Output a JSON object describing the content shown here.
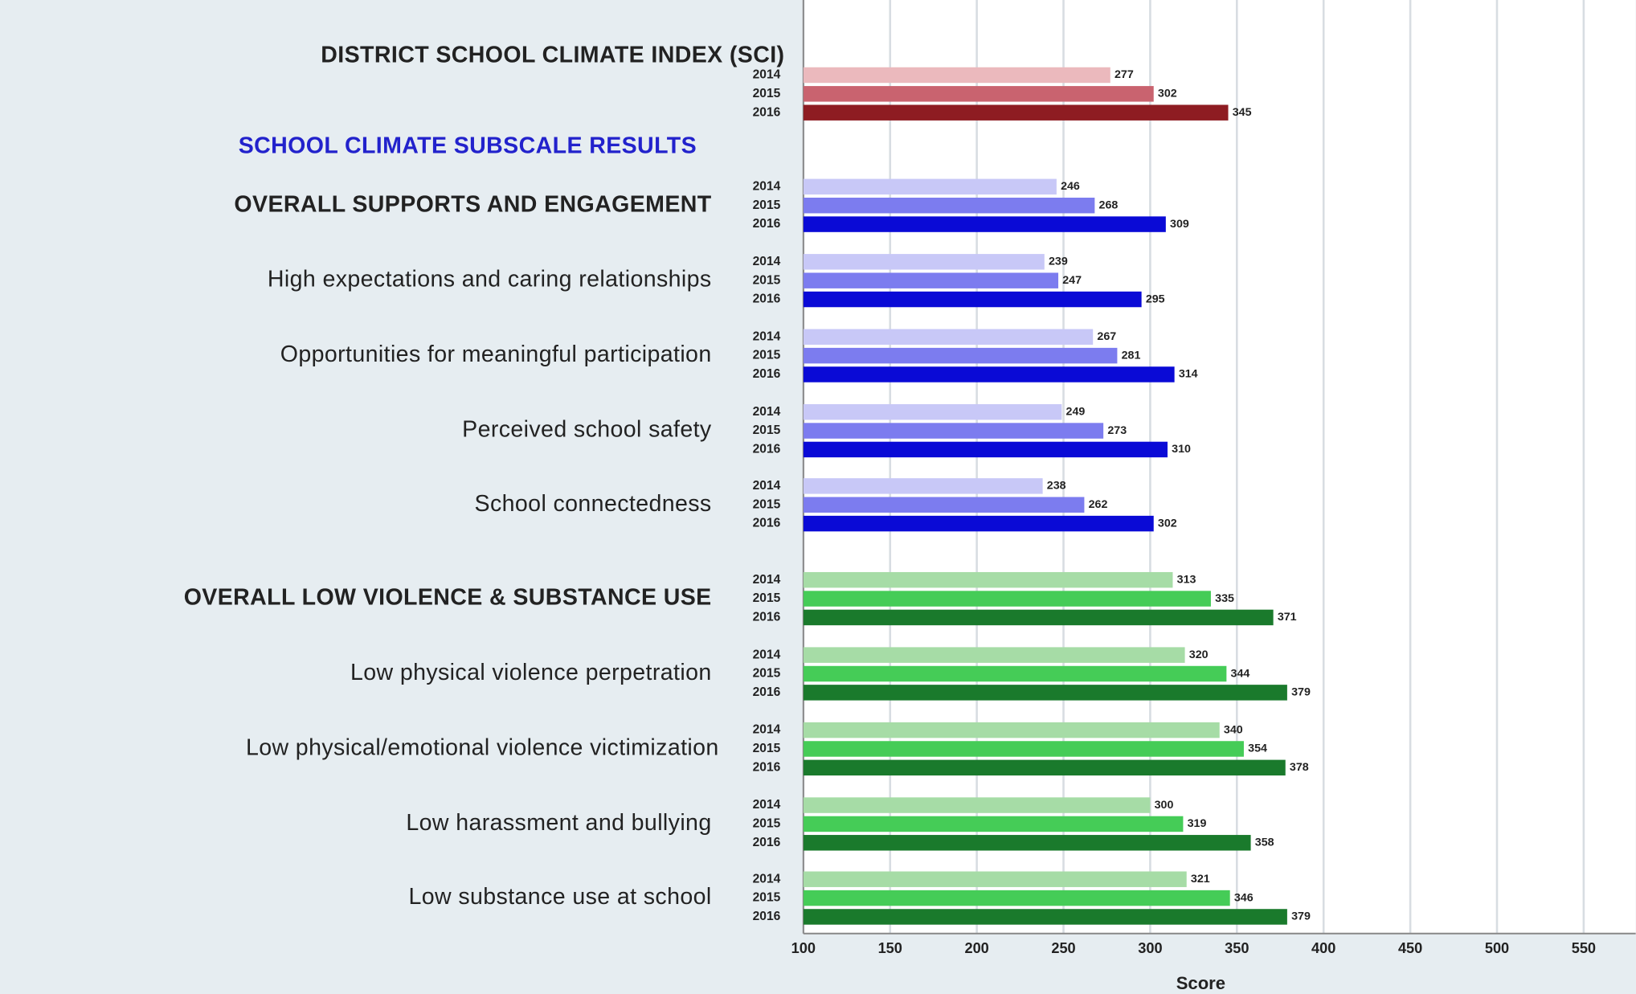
{
  "chart_data": {
    "type": "bar",
    "orientation": "horizontal",
    "xlabel": "Score",
    "xlim": [
      100,
      580
    ],
    "xticks": [
      100,
      150,
      200,
      250,
      300,
      350,
      400,
      450,
      500,
      550
    ],
    "grid": true,
    "years": [
      "2014",
      "2015",
      "2016"
    ],
    "section_label": "SCHOOL CLIMATE SUBSCALE RESULTS",
    "groups": [
      {
        "label": "DISTRICT SCHOOL CLIMATE INDEX (SCI)",
        "bold": true,
        "values": [
          277,
          302,
          345
        ],
        "colors": [
          "#ebb9bd",
          "#c9636f",
          "#8e1c22"
        ]
      },
      {
        "label": "OVERALL SUPPORTS AND ENGAGEMENT",
        "bold": true,
        "values": [
          246,
          268,
          309
        ],
        "colors": [
          "#c8c8f7",
          "#7c7cef",
          "#0a0ad6"
        ]
      },
      {
        "label": "High expectations and caring relationships",
        "bold": false,
        "values": [
          239,
          247,
          295
        ],
        "colors": [
          "#c8c8f7",
          "#7c7cef",
          "#0a0ad6"
        ]
      },
      {
        "label": "Opportunities for meaningful participation",
        "bold": false,
        "values": [
          267,
          281,
          314
        ],
        "colors": [
          "#c8c8f7",
          "#7c7cef",
          "#0a0ad6"
        ]
      },
      {
        "label": "Perceived school safety",
        "bold": false,
        "values": [
          249,
          273,
          310
        ],
        "colors": [
          "#c8c8f7",
          "#7c7cef",
          "#0a0ad6"
        ]
      },
      {
        "label": "School connectedness",
        "bold": false,
        "values": [
          238,
          262,
          302
        ],
        "colors": [
          "#c8c8f7",
          "#7c7cef",
          "#0a0ad6"
        ]
      },
      {
        "label": "OVERALL LOW VIOLENCE & SUBSTANCE USE",
        "bold": true,
        "values": [
          313,
          335,
          371
        ],
        "colors": [
          "#a6dca6",
          "#45cc57",
          "#1a7a2c"
        ]
      },
      {
        "label": "Low physical violence perpetration",
        "bold": false,
        "values": [
          320,
          344,
          379
        ],
        "colors": [
          "#a6dca6",
          "#45cc57",
          "#1a7a2c"
        ]
      },
      {
        "label": "Low physical/emotional violence victimization",
        "bold": false,
        "values": [
          340,
          354,
          378
        ],
        "colors": [
          "#a6dca6",
          "#45cc57",
          "#1a7a2c"
        ]
      },
      {
        "label": "Low harassment and bullying",
        "bold": false,
        "values": [
          300,
          319,
          358
        ],
        "colors": [
          "#a6dca6",
          "#45cc57",
          "#1a7a2c"
        ]
      },
      {
        "label": "Low substance use at school",
        "bold": false,
        "values": [
          321,
          346,
          379
        ],
        "colors": [
          "#a6dca6",
          "#45cc57",
          "#1a7a2c"
        ]
      }
    ]
  }
}
